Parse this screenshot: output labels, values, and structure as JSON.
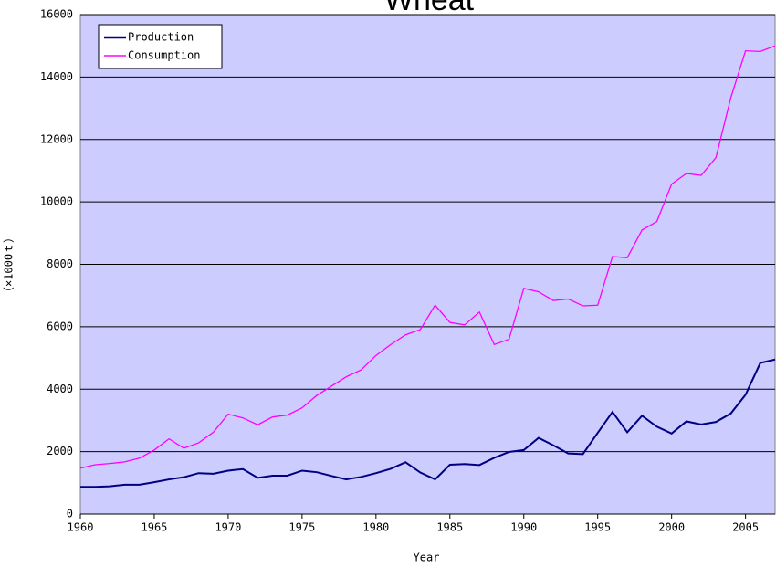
{
  "chart_data": {
    "type": "line",
    "title": "Wheat",
    "x_label": "Year",
    "y_label": "（×1000ｔ）",
    "x": [
      1960,
      1961,
      1962,
      1963,
      1964,
      1965,
      1966,
      1967,
      1968,
      1969,
      1970,
      1971,
      1972,
      1973,
      1974,
      1975,
      1976,
      1977,
      1978,
      1979,
      1980,
      1981,
      1982,
      1983,
      1984,
      1985,
      1986,
      1987,
      1988,
      1989,
      1990,
      1991,
      1992,
      1993,
      1994,
      1995,
      1996,
      1997,
      1998,
      1999,
      2000,
      2001,
      2002,
      2003,
      2004,
      2005,
      2006,
      2007
    ],
    "series": [
      {
        "name": "Production",
        "color": "#000080",
        "values": [
          870,
          870,
          890,
          940,
          940,
          1020,
          1110,
          1180,
          1310,
          1290,
          1390,
          1440,
          1160,
          1230,
          1230,
          1390,
          1340,
          1220,
          1110,
          1190,
          1310,
          1450,
          1660,
          1330,
          1110,
          1580,
          1600,
          1570,
          1800,
          1990,
          2050,
          2440,
          2200,
          1940,
          1920,
          2600,
          3270,
          2620,
          3150,
          2800,
          2580,
          2970,
          2870,
          2950,
          3220,
          3820,
          4840,
          4950
        ]
      },
      {
        "name": "Consumption",
        "color": "#ff00ff",
        "values": [
          1470,
          1580,
          1620,
          1670,
          1790,
          2050,
          2410,
          2110,
          2280,
          2620,
          3200,
          3080,
          2860,
          3110,
          3170,
          3400,
          3800,
          4100,
          4400,
          4620,
          5080,
          5430,
          5740,
          5910,
          6690,
          6140,
          6060,
          6470,
          5430,
          5600,
          7230,
          7120,
          6840,
          6890,
          6670,
          6690,
          8250,
          8210,
          9100,
          9370,
          10570,
          10910,
          10850,
          11420,
          13330,
          14840,
          14820,
          15000
        ]
      }
    ],
    "xlim": [
      1960,
      2007
    ],
    "xticks": [
      1960,
      1965,
      1970,
      1975,
      1980,
      1985,
      1990,
      1995,
      2000,
      2005
    ],
    "ylim": [
      0,
      16000
    ],
    "yticks": [
      0,
      2000,
      4000,
      6000,
      8000,
      10000,
      12000,
      14000,
      16000
    ],
    "grid": true,
    "legend": "upper left",
    "background": "#ccccff"
  }
}
